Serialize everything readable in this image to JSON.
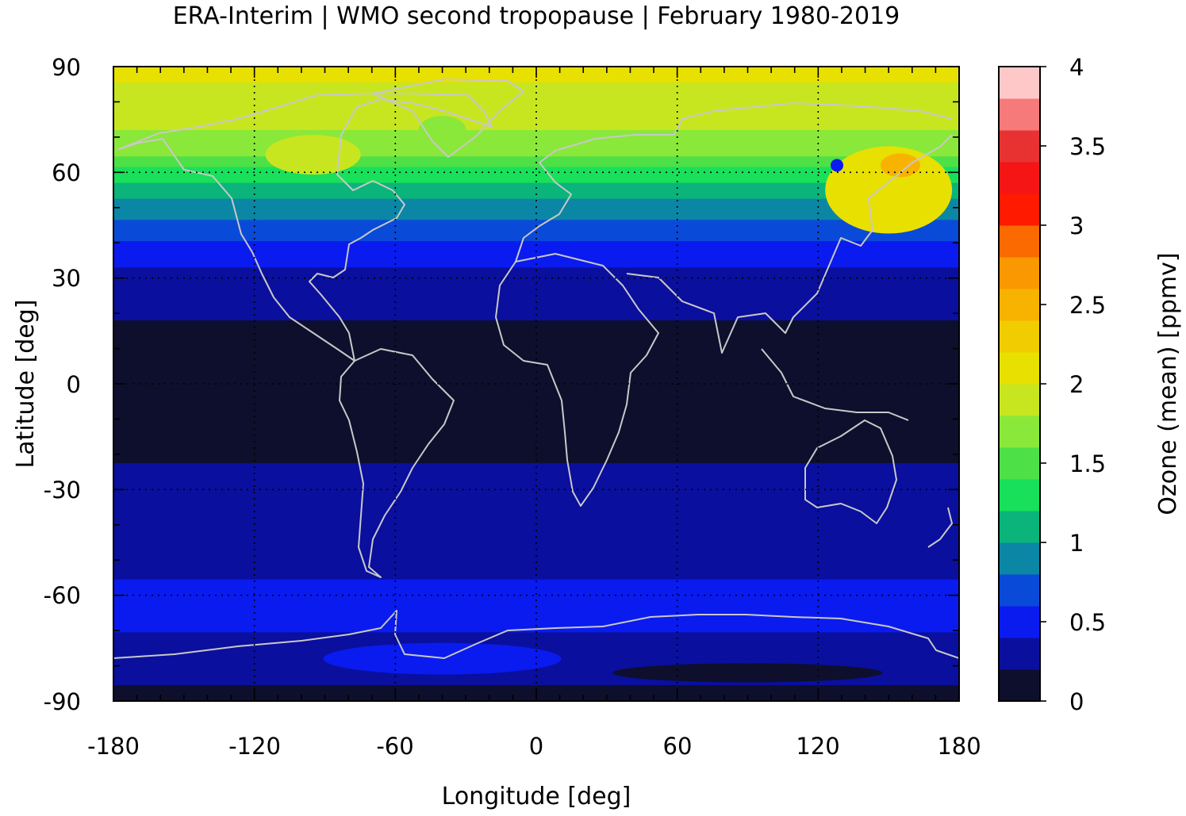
{
  "chart_data": {
    "type": "heatmap",
    "title": "ERA-Interim | WMO second tropopause | February 1980-2019",
    "xlabel": "Longitude [deg]",
    "ylabel": "Latitude [deg]",
    "xlim": [
      -180,
      180
    ],
    "ylim": [
      -90,
      90
    ],
    "xticks": [
      "-180",
      "-120",
      "-60",
      "0",
      "60",
      "120",
      "180"
    ],
    "yticks": [
      "90",
      "60",
      "30",
      "0",
      "-30",
      "-60",
      "-90"
    ],
    "grid": true,
    "colorbar": {
      "label": "Ozone (mean) [ppmv]",
      "range": [
        0,
        4
      ],
      "ticks": [
        "0",
        "0.5",
        "1",
        "1.5",
        "2",
        "2.5",
        "3",
        "3.5",
        "4"
      ],
      "colors": [
        "#0d0f2d",
        "#0a0f9e",
        "#0a1bef",
        "#0a4ad8",
        "#0b86a5",
        "#0ab47a",
        "#18e05a",
        "#4de047",
        "#8ae83a",
        "#c8e620",
        "#e8e000",
        "#f0cc00",
        "#f7b300",
        "#f99800",
        "#fb6a00",
        "#ff1a00",
        "#f51515",
        "#e83232",
        "#f77a7a",
        "#ffc8c8"
      ]
    },
    "approx_zonal_mean_ozone": {
      "latitudes": [
        90,
        75,
        65,
        55,
        45,
        35,
        25,
        10,
        0,
        -15,
        -30,
        -45,
        -60,
        -70,
        -80,
        -90
      ],
      "values": [
        2.05,
        1.9,
        1.6,
        1.1,
        0.75,
        0.45,
        0.25,
        0.15,
        0.2,
        0.15,
        0.25,
        0.3,
        0.45,
        0.4,
        0.3,
        0.1
      ]
    }
  }
}
